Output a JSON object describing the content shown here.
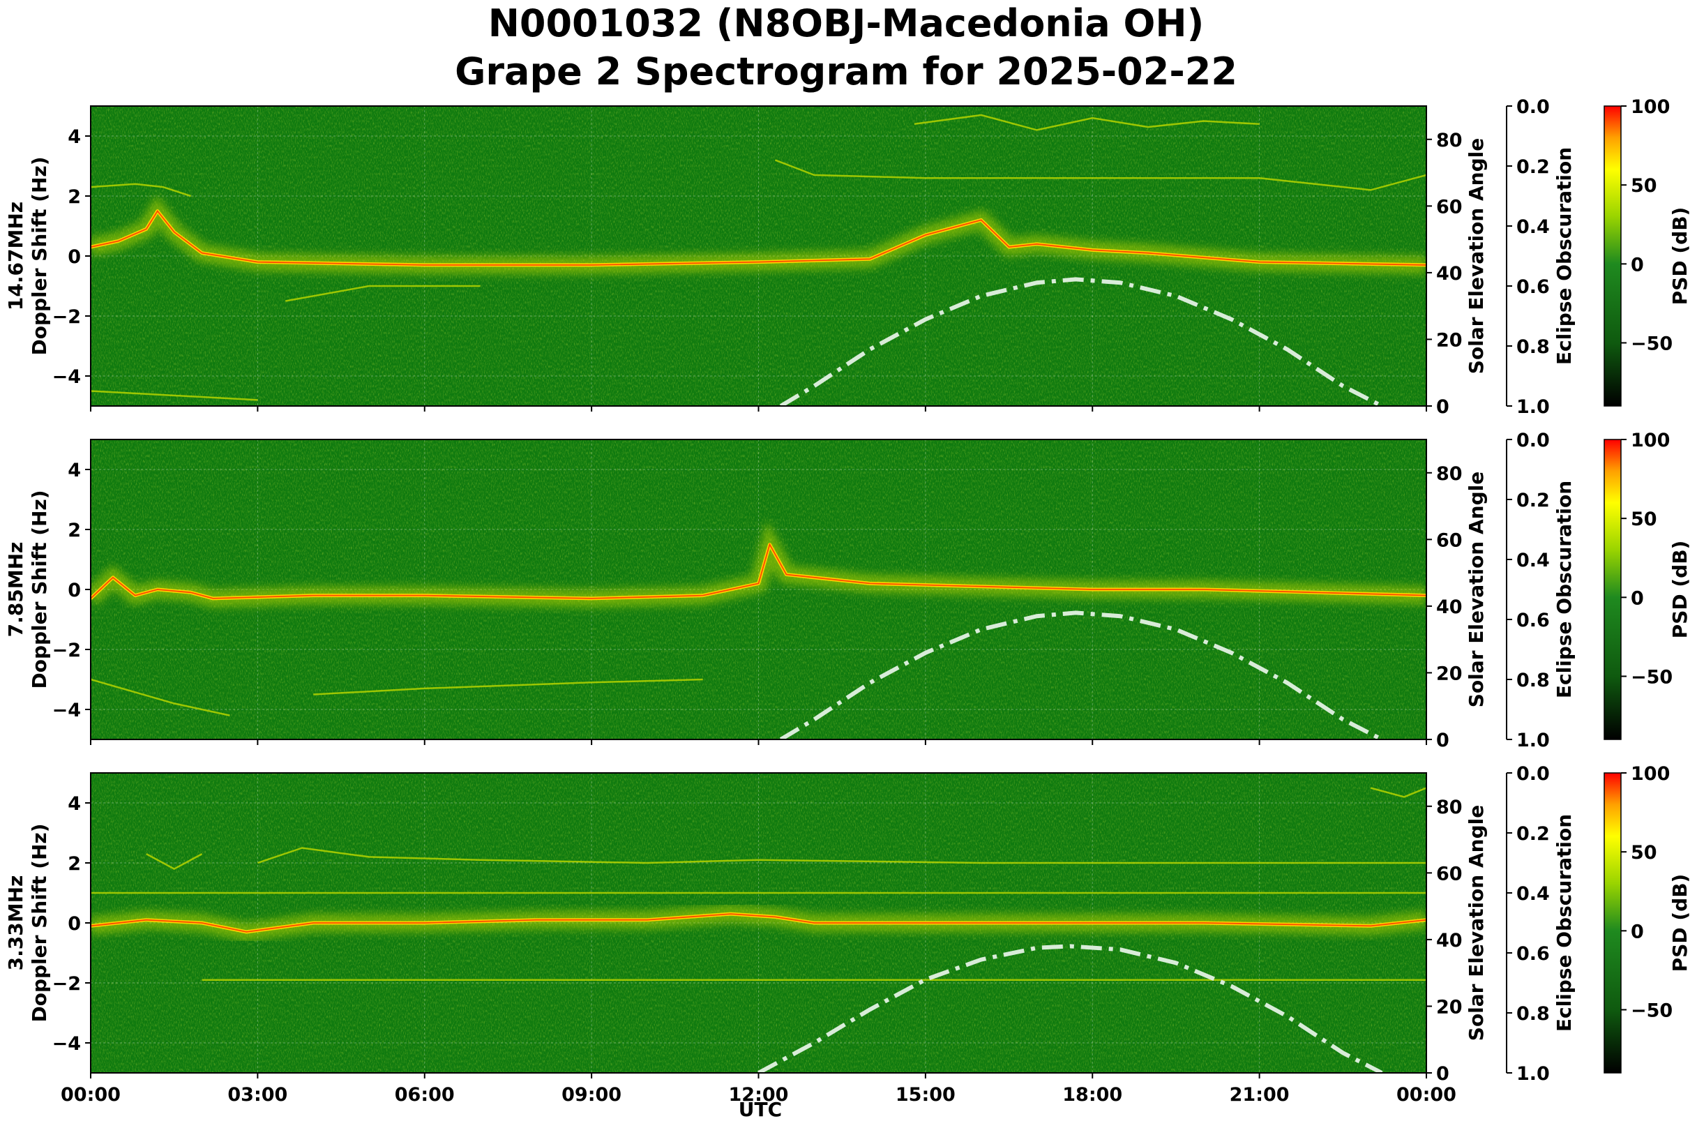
{
  "title_line1": "N0001032 (N8OBJ-Macedonia OH)",
  "title_line2": "Grape 2 Spectrogram for 2025-02-22",
  "x_axis": {
    "label": "UTC",
    "range_hours": [
      0,
      24
    ],
    "ticks": [
      {
        "hour": 0,
        "label": "00:00"
      },
      {
        "hour": 3,
        "label": "03:00"
      },
      {
        "hour": 6,
        "label": "06:00"
      },
      {
        "hour": 9,
        "label": "09:00"
      },
      {
        "hour": 12,
        "label": "12:00"
      },
      {
        "hour": 15,
        "label": "15:00"
      },
      {
        "hour": 18,
        "label": "18:00"
      },
      {
        "hour": 21,
        "label": "21:00"
      },
      {
        "hour": 24,
        "label": "00:00"
      }
    ]
  },
  "panel_colors": {
    "background": "#0f7a0f",
    "carrier_core": "#ff2a00",
    "carrier_mid": "#ffd200",
    "carrier_halo": "#b5d400",
    "elevation_curve": "#d9ecd9"
  },
  "colorbar": {
    "label": "PSD (dB)",
    "range": [
      -90,
      100
    ],
    "ticks": [
      100,
      50,
      0,
      -50
    ],
    "tick_labels": [
      "100",
      "50",
      "0",
      "−50"
    ],
    "stops": [
      {
        "value": -90,
        "color": "#000000"
      },
      {
        "value": -50,
        "color": "#0f5a0f"
      },
      {
        "value": 0,
        "color": "#1f8a1f"
      },
      {
        "value": 30,
        "color": "#9ad400"
      },
      {
        "value": 60,
        "color": "#ffff00"
      },
      {
        "value": 80,
        "color": "#ffa000"
      },
      {
        "value": 100,
        "color": "#ff0000"
      }
    ]
  },
  "chart_data": [
    {
      "type": "heatmap",
      "frequency": "14.67MHz",
      "ylabel": "14.67MHz\nDoppler Shift (Hz)",
      "ylabel_line1": "14.67MHz",
      "ylabel_line2": "Doppler Shift (Hz)",
      "ylim": [
        -5,
        5
      ],
      "yticks": [
        4,
        2,
        0,
        -2,
        -4
      ],
      "ytick_labels": [
        "4",
        "2",
        "0",
        "−2",
        "−4"
      ],
      "secondary_axis": {
        "label": "Solar Elevation Angle",
        "range": [
          0,
          90
        ],
        "ticks": [
          0,
          20,
          40,
          60,
          80
        ]
      },
      "eclipse_axis": {
        "label": "Eclipse Obscuration",
        "range": [
          0.0,
          1.0
        ],
        "ticks": [
          "0.0",
          "0.2",
          "0.4",
          "0.6",
          "0.8",
          "1.0"
        ]
      },
      "traces": [
        {
          "kind": "carrier",
          "points": [
            [
              0,
              0.3
            ],
            [
              0.5,
              0.5
            ],
            [
              1,
              0.9
            ],
            [
              1.2,
              1.5
            ],
            [
              1.5,
              0.8
            ],
            [
              2,
              0.1
            ],
            [
              3,
              -0.2
            ],
            [
              6,
              -0.3
            ],
            [
              9,
              -0.3
            ],
            [
              12,
              -0.2
            ],
            [
              14,
              -0.1
            ],
            [
              15,
              0.7
            ],
            [
              16,
              1.2
            ],
            [
              16.5,
              0.3
            ],
            [
              17,
              0.4
            ],
            [
              18,
              0.2
            ],
            [
              19,
              0.1
            ],
            [
              21,
              -0.2
            ],
            [
              24,
              -0.3
            ]
          ]
        },
        {
          "kind": "trace",
          "points": [
            [
              0,
              2.3
            ],
            [
              0.8,
              2.4
            ],
            [
              1.3,
              2.3
            ],
            [
              1.8,
              2.0
            ]
          ]
        },
        {
          "kind": "trace",
          "points": [
            [
              12.3,
              3.2
            ],
            [
              13,
              2.7
            ],
            [
              15,
              2.6
            ],
            [
              18,
              2.6
            ],
            [
              21,
              2.6
            ],
            [
              23,
              2.2
            ],
            [
              24,
              2.7
            ]
          ]
        },
        {
          "kind": "trace",
          "points": [
            [
              14.8,
              4.4
            ],
            [
              16,
              4.7
            ],
            [
              17,
              4.2
            ],
            [
              18,
              4.6
            ],
            [
              19,
              4.3
            ],
            [
              20,
              4.5
            ],
            [
              21,
              4.4
            ]
          ]
        },
        {
          "kind": "trace",
          "points": [
            [
              3.5,
              -1.5
            ],
            [
              5,
              -1.0
            ],
            [
              7,
              -1.0
            ]
          ]
        },
        {
          "kind": "trace",
          "points": [
            [
              0,
              -4.5
            ],
            [
              1,
              -4.6
            ],
            [
              3,
              -4.8
            ]
          ]
        }
      ],
      "solar_elevation": [
        [
          12.4,
          0
        ],
        [
          13,
          6
        ],
        [
          14,
          17
        ],
        [
          15,
          26
        ],
        [
          16,
          33
        ],
        [
          17,
          37
        ],
        [
          17.7,
          38
        ],
        [
          18.5,
          37
        ],
        [
          19.5,
          33
        ],
        [
          20.5,
          26
        ],
        [
          21.5,
          17
        ],
        [
          22.5,
          6
        ],
        [
          23.2,
          0
        ]
      ]
    },
    {
      "type": "heatmap",
      "frequency": "7.85MHz",
      "ylabel": "7.85MHz\nDoppler Shift (Hz)",
      "ylabel_line1": "7.85MHz",
      "ylabel_line2": "Doppler Shift (Hz)",
      "ylim": [
        -5,
        5
      ],
      "yticks": [
        4,
        2,
        0,
        -2,
        -4
      ],
      "ytick_labels": [
        "4",
        "2",
        "0",
        "−2",
        "−4"
      ],
      "secondary_axis": {
        "label": "Solar Elevation Angle",
        "range": [
          0,
          90
        ],
        "ticks": [
          0,
          20,
          40,
          60,
          80
        ]
      },
      "eclipse_axis": {
        "label": "Eclipse Obscuration",
        "range": [
          0.0,
          1.0
        ],
        "ticks": [
          "0.0",
          "0.2",
          "0.4",
          "0.6",
          "0.8",
          "1.0"
        ]
      },
      "traces": [
        {
          "kind": "carrier",
          "points": [
            [
              0,
              -0.3
            ],
            [
              0.4,
              0.4
            ],
            [
              0.8,
              -0.2
            ],
            [
              1.2,
              0
            ],
            [
              1.8,
              -0.1
            ],
            [
              2.2,
              -0.3
            ],
            [
              4,
              -0.2
            ],
            [
              6,
              -0.2
            ],
            [
              9,
              -0.3
            ],
            [
              11,
              -0.2
            ],
            [
              12,
              0.2
            ],
            [
              12.2,
              1.5
            ],
            [
              12.5,
              0.5
            ],
            [
              14,
              0.2
            ],
            [
              16,
              0.1
            ],
            [
              18,
              0.0
            ],
            [
              20,
              0.0
            ],
            [
              22,
              -0.1
            ],
            [
              24,
              -0.2
            ]
          ]
        },
        {
          "kind": "trace",
          "points": [
            [
              4,
              -3.5
            ],
            [
              6,
              -3.3
            ],
            [
              9,
              -3.1
            ],
            [
              11,
              -3.0
            ]
          ]
        },
        {
          "kind": "trace",
          "points": [
            [
              0,
              -3.0
            ],
            [
              1.5,
              -3.8
            ],
            [
              2.5,
              -4.2
            ]
          ]
        }
      ],
      "solar_elevation": [
        [
          12.4,
          0
        ],
        [
          13,
          6
        ],
        [
          14,
          17
        ],
        [
          15,
          26
        ],
        [
          16,
          33
        ],
        [
          17,
          37
        ],
        [
          17.7,
          38
        ],
        [
          18.5,
          37
        ],
        [
          19.5,
          33
        ],
        [
          20.5,
          26
        ],
        [
          21.5,
          17
        ],
        [
          22.5,
          6
        ],
        [
          23.2,
          0
        ]
      ]
    },
    {
      "type": "heatmap",
      "frequency": "3.33MHz",
      "ylabel": "3.33MHz\nDoppler Shift (Hz)",
      "ylabel_line1": "3.33MHz",
      "ylabel_line2": "Doppler Shift (Hz)",
      "ylim": [
        -5,
        5
      ],
      "yticks": [
        4,
        2,
        0,
        -2,
        -4
      ],
      "ytick_labels": [
        "4",
        "2",
        "0",
        "−2",
        "−4"
      ],
      "secondary_axis": {
        "label": "Solar Elevation Angle",
        "range": [
          0,
          90
        ],
        "ticks": [
          0,
          20,
          40,
          60,
          80
        ]
      },
      "eclipse_axis": {
        "label": "Eclipse Obscuration",
        "range": [
          0.0,
          1.0
        ],
        "ticks": [
          "0.0",
          "0.2",
          "0.4",
          "0.6",
          "0.8",
          "1.0"
        ]
      },
      "traces": [
        {
          "kind": "carrier",
          "points": [
            [
              0,
              -0.1
            ],
            [
              1,
              0.1
            ],
            [
              2,
              0
            ],
            [
              2.8,
              -0.3
            ],
            [
              4,
              0
            ],
            [
              6,
              0
            ],
            [
              8,
              0.1
            ],
            [
              10,
              0.1
            ],
            [
              11.5,
              0.3
            ],
            [
              12.3,
              0.2
            ],
            [
              13,
              0
            ],
            [
              16,
              0
            ],
            [
              20,
              0
            ],
            [
              23,
              -0.1
            ],
            [
              24,
              0.1
            ]
          ]
        },
        {
          "kind": "trace",
          "points": [
            [
              3,
              2.0
            ],
            [
              3.8,
              2.5
            ],
            [
              5,
              2.2
            ],
            [
              7,
              2.1
            ],
            [
              10,
              2.0
            ],
            [
              12,
              2.1
            ],
            [
              16,
              2.0
            ],
            [
              20,
              2.0
            ],
            [
              24,
              2.0
            ]
          ]
        },
        {
          "kind": "trace",
          "points": [
            [
              1,
              2.3
            ],
            [
              1.5,
              1.8
            ],
            [
              2,
              2.3
            ]
          ]
        },
        {
          "kind": "trace",
          "points": [
            [
              2,
              -1.9
            ],
            [
              6,
              -1.9
            ],
            [
              10,
              -1.9
            ],
            [
              14,
              -1.9
            ],
            [
              18,
              -1.9
            ],
            [
              22,
              -1.9
            ],
            [
              24,
              -1.9
            ]
          ]
        },
        {
          "kind": "trace",
          "points": [
            [
              0,
              1.0
            ],
            [
              6,
              1.0
            ],
            [
              12,
              1.0
            ],
            [
              18,
              1.0
            ],
            [
              24,
              1.0
            ]
          ]
        },
        {
          "kind": "trace",
          "points": [
            [
              23,
              4.5
            ],
            [
              23.6,
              4.2
            ],
            [
              24,
              4.5
            ]
          ]
        }
      ],
      "solar_elevation": [
        [
          12.0,
          0
        ],
        [
          13,
          9
        ],
        [
          14,
          19
        ],
        [
          15,
          28
        ],
        [
          16,
          34
        ],
        [
          17,
          37.5
        ],
        [
          17.6,
          38
        ],
        [
          18.5,
          37
        ],
        [
          19.5,
          33
        ],
        [
          20.5,
          26
        ],
        [
          21.5,
          17
        ],
        [
          22.5,
          6
        ],
        [
          23.2,
          0
        ]
      ]
    }
  ]
}
